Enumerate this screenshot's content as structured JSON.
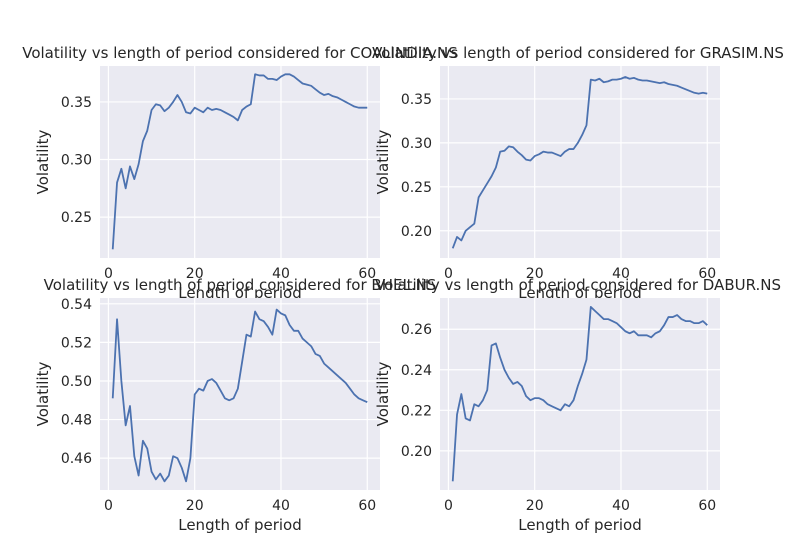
{
  "chart_data": [
    {
      "type": "line",
      "title": "Volatility vs length of period considered for COALINDIA.NS",
      "xlabel": "Length of period",
      "ylabel": "Volatility",
      "xlim": [
        -1.95,
        62.95
      ],
      "ylim": [
        0.2145,
        0.3812
      ],
      "xticks": [
        0,
        20,
        40,
        60
      ],
      "yticks": [
        0.25,
        0.3,
        0.35
      ],
      "ytick_labels": [
        "0.25",
        "0.30",
        "0.35"
      ],
      "grid": true,
      "style": "seaborn-darkgrid",
      "line_color": "#4c72b0",
      "x": [
        1,
        2,
        3,
        4,
        5,
        6,
        7,
        8,
        9,
        10,
        11,
        12,
        13,
        14,
        15,
        16,
        17,
        18,
        19,
        20,
        21,
        22,
        23,
        24,
        25,
        26,
        27,
        28,
        29,
        30,
        31,
        32,
        33,
        34,
        35,
        36,
        37,
        38,
        39,
        40,
        41,
        42,
        43,
        44,
        45,
        46,
        47,
        48,
        49,
        50,
        51,
        52,
        53,
        54,
        55,
        56,
        57,
        58,
        59,
        60
      ],
      "values": [
        0.222,
        0.28,
        0.292,
        0.275,
        0.294,
        0.283,
        0.296,
        0.316,
        0.325,
        0.343,
        0.348,
        0.347,
        0.342,
        0.345,
        0.35,
        0.356,
        0.35,
        0.341,
        0.34,
        0.345,
        0.343,
        0.341,
        0.345,
        0.343,
        0.344,
        0.343,
        0.341,
        0.339,
        0.337,
        0.334,
        0.343,
        0.346,
        0.348,
        0.374,
        0.373,
        0.373,
        0.37,
        0.37,
        0.369,
        0.372,
        0.374,
        0.374,
        0.372,
        0.369,
        0.366,
        0.365,
        0.364,
        0.361,
        0.358,
        0.356,
        0.357,
        0.355,
        0.354,
        0.352,
        0.35,
        0.348,
        0.346,
        0.345,
        0.345,
        0.345
      ]
    },
    {
      "type": "line",
      "title": "Volatility vs length of period considered for GRASIM.NS",
      "xlabel": "Length of period",
      "ylabel": "Volatility",
      "xlim": [
        -1.95,
        62.95
      ],
      "ylim": [
        0.169,
        0.3875
      ],
      "xticks": [
        0,
        20,
        40,
        60
      ],
      "yticks": [
        0.2,
        0.25,
        0.3,
        0.35
      ],
      "ytick_labels": [
        "0.20",
        "0.25",
        "0.30",
        "0.35"
      ],
      "grid": true,
      "style": "seaborn-darkgrid",
      "line_color": "#4c72b0",
      "x": [
        1,
        2,
        3,
        4,
        5,
        6,
        7,
        8,
        9,
        10,
        11,
        12,
        13,
        14,
        15,
        16,
        17,
        18,
        19,
        20,
        21,
        22,
        23,
        24,
        25,
        26,
        27,
        28,
        29,
        30,
        31,
        32,
        33,
        34,
        35,
        36,
        37,
        38,
        39,
        40,
        41,
        42,
        43,
        44,
        45,
        46,
        47,
        48,
        49,
        50,
        51,
        52,
        53,
        54,
        55,
        56,
        57,
        58,
        59,
        60
      ],
      "values": [
        0.18,
        0.193,
        0.189,
        0.2,
        0.204,
        0.208,
        0.238,
        0.246,
        0.254,
        0.262,
        0.272,
        0.29,
        0.291,
        0.296,
        0.295,
        0.29,
        0.286,
        0.281,
        0.28,
        0.285,
        0.287,
        0.29,
        0.289,
        0.289,
        0.287,
        0.285,
        0.29,
        0.293,
        0.293,
        0.3,
        0.309,
        0.32,
        0.372,
        0.371,
        0.373,
        0.369,
        0.37,
        0.372,
        0.372,
        0.373,
        0.375,
        0.373,
        0.374,
        0.372,
        0.371,
        0.371,
        0.37,
        0.369,
        0.368,
        0.369,
        0.367,
        0.366,
        0.365,
        0.363,
        0.361,
        0.359,
        0.357,
        0.356,
        0.357,
        0.356
      ]
    },
    {
      "type": "line",
      "title": "Volatility vs length of period considered for BHEL.NS",
      "xlabel": "Length of period",
      "ylabel": "Volatility",
      "xlim": [
        -1.95,
        62.95
      ],
      "ylim": [
        0.4435,
        0.543
      ],
      "xticks": [
        0,
        20,
        40,
        60
      ],
      "yticks": [
        0.46,
        0.48,
        0.5,
        0.52,
        0.54
      ],
      "ytick_labels": [
        "0.46",
        "0.48",
        "0.50",
        "0.52",
        "0.54"
      ],
      "grid": true,
      "style": "seaborn-darkgrid",
      "line_color": "#4c72b0",
      "x": [
        1,
        2,
        3,
        4,
        5,
        6,
        7,
        8,
        9,
        10,
        11,
        12,
        13,
        14,
        15,
        16,
        17,
        18,
        19,
        20,
        21,
        22,
        23,
        24,
        25,
        26,
        27,
        28,
        29,
        30,
        31,
        32,
        33,
        34,
        35,
        36,
        37,
        38,
        39,
        40,
        41,
        42,
        43,
        44,
        45,
        46,
        47,
        48,
        49,
        50,
        51,
        52,
        53,
        54,
        55,
        56,
        57,
        58,
        59,
        60
      ],
      "values": [
        0.491,
        0.532,
        0.5,
        0.477,
        0.487,
        0.461,
        0.451,
        0.469,
        0.465,
        0.453,
        0.449,
        0.452,
        0.448,
        0.451,
        0.461,
        0.46,
        0.455,
        0.448,
        0.46,
        0.493,
        0.496,
        0.495,
        0.5,
        0.501,
        0.499,
        0.495,
        0.491,
        0.49,
        0.491,
        0.496,
        0.51,
        0.524,
        0.523,
        0.536,
        0.532,
        0.531,
        0.528,
        0.524,
        0.537,
        0.535,
        0.534,
        0.529,
        0.526,
        0.526,
        0.522,
        0.52,
        0.518,
        0.514,
        0.513,
        0.509,
        0.507,
        0.505,
        0.503,
        0.501,
        0.499,
        0.496,
        0.493,
        0.491,
        0.49,
        0.489
      ]
    },
    {
      "type": "line",
      "title": "Volatility vs length of period considered for DABUR.NS",
      "xlabel": "Length of period",
      "ylabel": "Volatility",
      "xlim": [
        -1.95,
        62.95
      ],
      "ylim": [
        0.1807,
        0.2754
      ],
      "xticks": [
        0,
        20,
        40,
        60
      ],
      "yticks": [
        0.2,
        0.22,
        0.24,
        0.26
      ],
      "ytick_labels": [
        "0.20",
        "0.22",
        "0.24",
        "0.26"
      ],
      "grid": true,
      "style": "seaborn-darkgrid",
      "line_color": "#4c72b0",
      "x": [
        1,
        2,
        3,
        4,
        5,
        6,
        7,
        8,
        9,
        10,
        11,
        12,
        13,
        14,
        15,
        16,
        17,
        18,
        19,
        20,
        21,
        22,
        23,
        24,
        25,
        26,
        27,
        28,
        29,
        30,
        31,
        32,
        33,
        34,
        35,
        36,
        37,
        38,
        39,
        40,
        41,
        42,
        43,
        44,
        45,
        46,
        47,
        48,
        49,
        50,
        51,
        52,
        53,
        54,
        55,
        56,
        57,
        58,
        59,
        60
      ],
      "values": [
        0.185,
        0.218,
        0.228,
        0.216,
        0.215,
        0.223,
        0.222,
        0.225,
        0.23,
        0.252,
        0.253,
        0.246,
        0.24,
        0.236,
        0.233,
        0.234,
        0.232,
        0.227,
        0.225,
        0.226,
        0.226,
        0.225,
        0.223,
        0.222,
        0.221,
        0.22,
        0.223,
        0.222,
        0.225,
        0.232,
        0.238,
        0.245,
        0.271,
        0.269,
        0.267,
        0.265,
        0.265,
        0.264,
        0.263,
        0.261,
        0.259,
        0.258,
        0.259,
        0.257,
        0.257,
        0.257,
        0.256,
        0.258,
        0.259,
        0.262,
        0.266,
        0.266,
        0.267,
        0.265,
        0.264,
        0.264,
        0.263,
        0.263,
        0.264,
        0.262
      ]
    }
  ]
}
